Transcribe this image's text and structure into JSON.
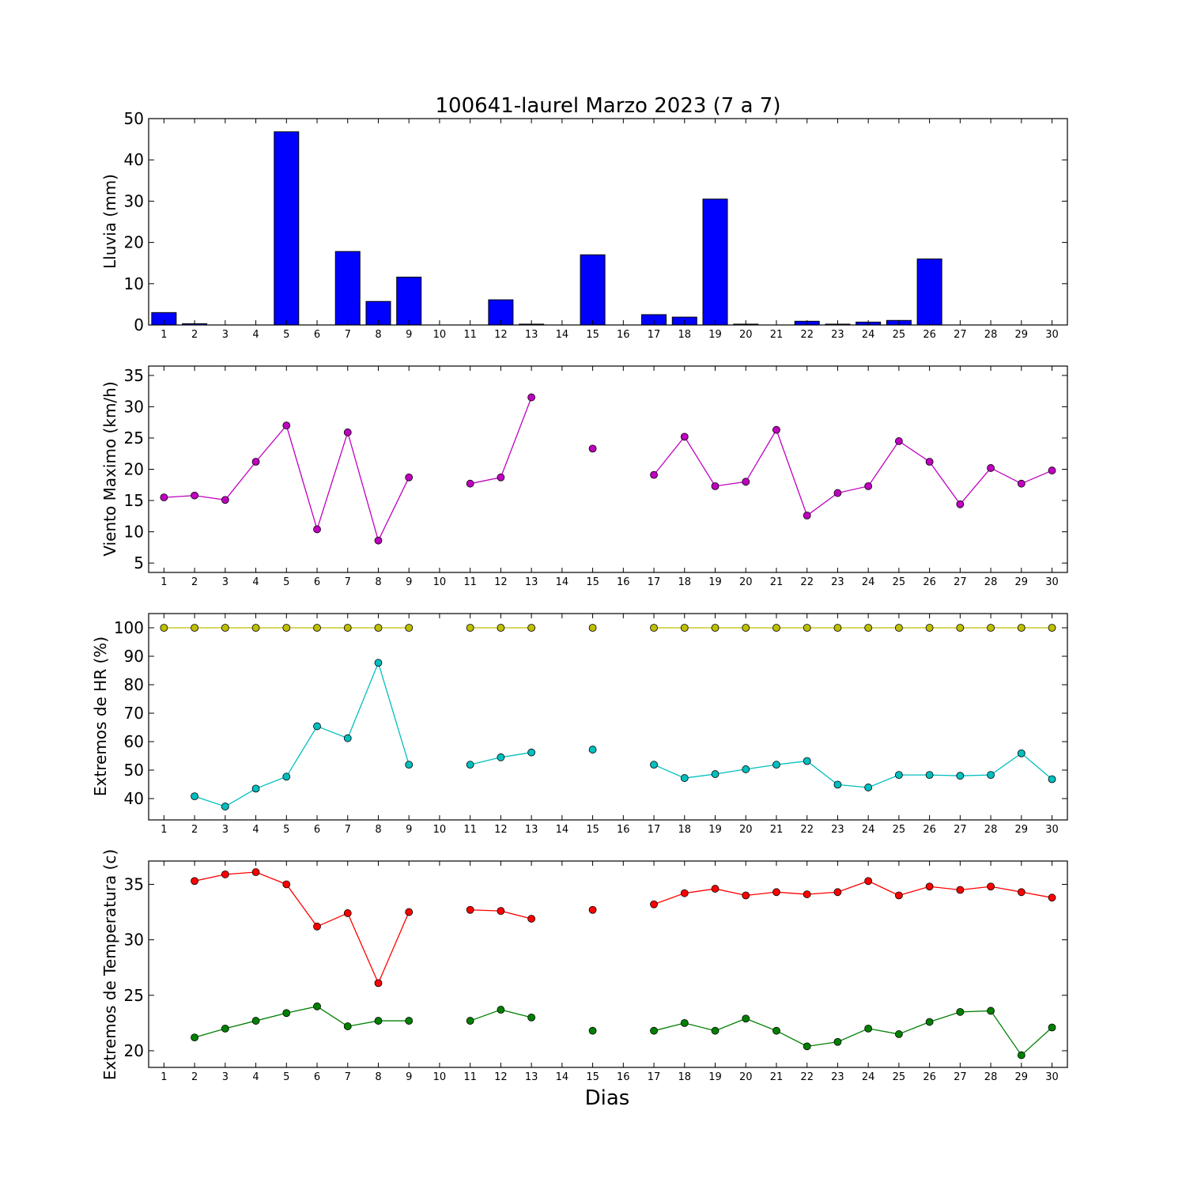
{
  "figure": {
    "title": "100641-laurel Marzo 2023  (7 a 7)",
    "xlabel": "Dias"
  },
  "chart_data": [
    {
      "type": "bar",
      "ylabel": "Lluvia (mm)",
      "ylim": [
        0,
        50
      ],
      "yticks": [
        0,
        10,
        20,
        30,
        40,
        50
      ],
      "categories": [
        1,
        2,
        3,
        4,
        5,
        6,
        7,
        8,
        9,
        10,
        11,
        12,
        13,
        14,
        15,
        16,
        17,
        18,
        19,
        20,
        21,
        22,
        23,
        24,
        25,
        26,
        27,
        28,
        29,
        30
      ],
      "values": [
        3.0,
        0.3,
        0,
        0,
        46.8,
        0,
        17.8,
        5.7,
        11.6,
        0,
        0,
        6.1,
        0.2,
        0,
        17.0,
        0,
        2.5,
        1.9,
        30.5,
        0.2,
        0,
        0.9,
        0.2,
        0.7,
        1.1,
        16.0,
        0,
        0,
        0,
        0
      ],
      "color": "#0000ff",
      "grid": false
    },
    {
      "type": "line",
      "ylabel": "Viento Maximo (km/h)",
      "ylim": [
        3.5,
        36.5
      ],
      "yticks": [
        5,
        10,
        15,
        20,
        25,
        30,
        35
      ],
      "x": [
        1,
        2,
        3,
        4,
        5,
        6,
        7,
        8,
        9,
        10,
        11,
        12,
        13,
        14,
        15,
        16,
        17,
        18,
        19,
        20,
        21,
        22,
        23,
        24,
        25,
        26,
        27,
        28,
        29,
        30
      ],
      "series": [
        {
          "color": "#bf00bf",
          "values": [
            15.5,
            15.8,
            15.1,
            21.2,
            27.0,
            10.4,
            25.9,
            8.6,
            18.7,
            null,
            17.7,
            18.7,
            31.5,
            null,
            23.3,
            null,
            19.1,
            25.2,
            17.3,
            18.0,
            26.3,
            12.6,
            16.2,
            17.3,
            24.5,
            21.2,
            14.4,
            20.2,
            17.7,
            19.8
          ]
        }
      ],
      "grid": false
    },
    {
      "type": "line",
      "ylabel": "Extremos de HR (%)",
      "ylim": [
        32.5,
        105
      ],
      "yticks": [
        40,
        50,
        60,
        70,
        80,
        90,
        100
      ],
      "x": [
        1,
        2,
        3,
        4,
        5,
        6,
        7,
        8,
        9,
        10,
        11,
        12,
        13,
        14,
        15,
        16,
        17,
        18,
        19,
        20,
        21,
        22,
        23,
        24,
        25,
        26,
        27,
        28,
        29,
        30
      ],
      "series": [
        {
          "color": "#bfbf00",
          "values": [
            100,
            100,
            100,
            100,
            100,
            100,
            100,
            100,
            100,
            null,
            100,
            100,
            100,
            null,
            100,
            null,
            100,
            100,
            100,
            100,
            100,
            100,
            100,
            100,
            100,
            100,
            100,
            100,
            100,
            100
          ]
        },
        {
          "color": "#00bfbf",
          "values": [
            null,
            40.8,
            37.2,
            43.5,
            47.7,
            65.4,
            61.2,
            87.7,
            51.9,
            null,
            51.9,
            54.5,
            56.2,
            null,
            57.2,
            null,
            51.9,
            47.2,
            48.6,
            50.3,
            51.9,
            53.2,
            44.9,
            43.9,
            48.3,
            48.3,
            48.0,
            48.3,
            55.9,
            46.8
          ]
        }
      ],
      "grid": false
    },
    {
      "type": "line",
      "ylabel": "Extremos de Temperatura (c)",
      "ylim": [
        18.5,
        37.1
      ],
      "yticks": [
        20,
        25,
        30,
        35
      ],
      "x": [
        1,
        2,
        3,
        4,
        5,
        6,
        7,
        8,
        9,
        10,
        11,
        12,
        13,
        14,
        15,
        16,
        17,
        18,
        19,
        20,
        21,
        22,
        23,
        24,
        25,
        26,
        27,
        28,
        29,
        30
      ],
      "series": [
        {
          "color": "#ff0000",
          "values": [
            null,
            35.3,
            35.9,
            36.1,
            35.0,
            31.2,
            32.4,
            26.1,
            32.5,
            null,
            32.7,
            32.6,
            31.9,
            null,
            32.7,
            null,
            33.2,
            34.2,
            34.6,
            34.0,
            34.3,
            34.1,
            34.3,
            35.3,
            34.0,
            34.8,
            34.5,
            34.8,
            34.3,
            33.8
          ]
        },
        {
          "color": "#008000",
          "values": [
            null,
            21.2,
            22.0,
            22.7,
            23.4,
            24.0,
            22.2,
            22.7,
            22.7,
            null,
            22.7,
            23.7,
            23.0,
            null,
            21.8,
            null,
            21.8,
            22.5,
            21.8,
            22.9,
            21.8,
            20.4,
            20.8,
            22.0,
            21.5,
            22.6,
            23.5,
            23.6,
            19.6,
            22.1
          ]
        }
      ],
      "grid": false
    }
  ]
}
